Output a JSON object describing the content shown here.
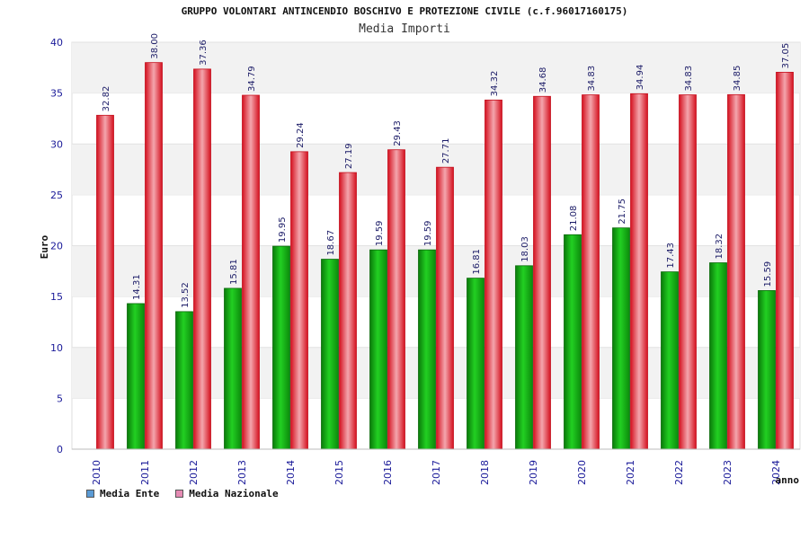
{
  "chart_data": {
    "type": "bar",
    "title": "GRUPPO VOLONTARI ANTINCENDIO BOSCHIVO E PROTEZIONE CIVILE (c.f.96017160175)",
    "subtitle": "Media Importi",
    "ylabel": "Euro",
    "xlabel": "anno",
    "ylim": [
      0,
      40
    ],
    "yticks": [
      0,
      5,
      10,
      15,
      20,
      25,
      30,
      35,
      40
    ],
    "categories": [
      "2010",
      "2011",
      "2012",
      "2013",
      "2014",
      "2015",
      "2016",
      "2017",
      "2018",
      "2019",
      "2020",
      "2021",
      "2022",
      "2023",
      "2024"
    ],
    "series": [
      {
        "name": "Media Ente",
        "color": "#1aa81a",
        "values": [
          null,
          14.31,
          13.52,
          15.81,
          19.95,
          18.67,
          19.59,
          19.59,
          16.81,
          18.03,
          21.08,
          21.75,
          17.43,
          18.32,
          15.59
        ],
        "labels": [
          "",
          "14.31",
          "13.52",
          "15.81",
          "19.95",
          "18.67",
          "19.59",
          "19.59",
          "16.81",
          "18.03",
          "21.08",
          "21.75",
          "17.43",
          "18.32",
          "15.59"
        ]
      },
      {
        "name": "Media Nazionale",
        "color": "#e8202f",
        "values": [
          32.82,
          38.0,
          37.36,
          34.79,
          29.24,
          27.19,
          29.43,
          27.71,
          34.32,
          34.68,
          34.83,
          34.94,
          34.83,
          34.85,
          37.05
        ],
        "labels": [
          "32.82",
          "38.00",
          "37.36",
          "34.79",
          "29.24",
          "27.19",
          "29.43",
          "27.71",
          "34.32",
          "34.68",
          "34.83",
          "34.94",
          "34.83",
          "34.85",
          "37.05"
        ]
      }
    ],
    "legend": {
      "position": "bottom-left",
      "items": [
        {
          "label": "Media Ente",
          "color": "#5b9bd5"
        },
        {
          "label": "Media Nazionale",
          "color": "#e58bb3"
        }
      ]
    },
    "grid": true
  }
}
